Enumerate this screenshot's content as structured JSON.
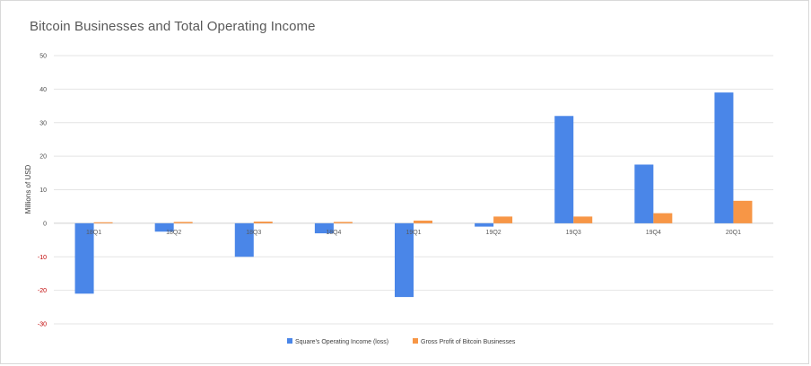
{
  "chart_data": {
    "type": "bar",
    "title": "Bitcoin Businesses and Total Operating Income",
    "xlabel": "",
    "ylabel": "Millions of USD",
    "ylim": [
      -30,
      50
    ],
    "yticks": [
      50,
      40,
      30,
      20,
      10,
      0,
      -10,
      -20,
      -30
    ],
    "categories": [
      "18Q1",
      "18Q2",
      "18Q3",
      "18Q4",
      "19Q1",
      "19Q2",
      "19Q3",
      "19Q4",
      "20Q1"
    ],
    "series": [
      {
        "name": "Square's Operating Income (loss)",
        "color": "#4a86e8",
        "values": [
          -21,
          -2.5,
          -10,
          -3,
          -22,
          -1,
          32,
          17.5,
          39
        ]
      },
      {
        "name": "Gross Profit of Bitcoin Businesses",
        "color": "#f79646",
        "values": [
          0.3,
          0.4,
          0.5,
          0.4,
          0.8,
          2,
          2,
          3,
          6.7
        ]
      }
    ],
    "grid": true,
    "legend": "bottom-center",
    "negative_tick_color": "#c00000"
  }
}
